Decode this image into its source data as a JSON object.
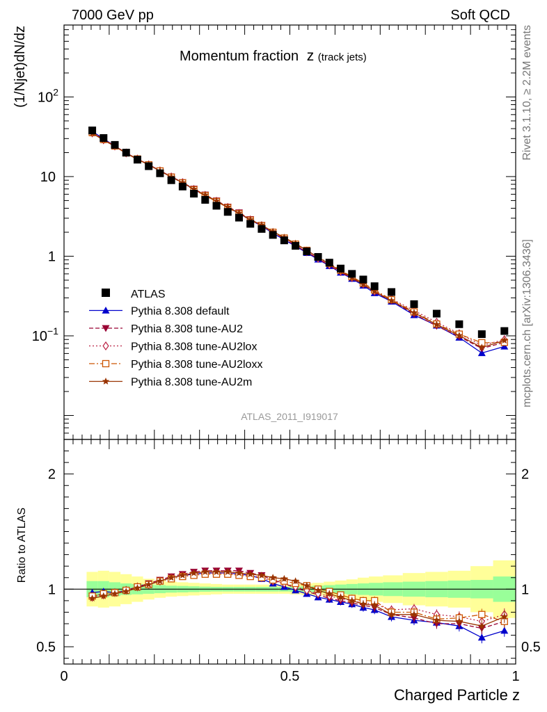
{
  "header": {
    "left": "7000 GeV pp",
    "right": "Soft QCD"
  },
  "chart_data": {
    "type": "line",
    "title": "Momentum fraction",
    "title_var": "z",
    "title_sub": "(track jets)",
    "ylabel": "(1/Njet)dN/dz",
    "ratio_ylabel": "Ratio to ATLAS",
    "xlabel": "Charged Particle z",
    "analysis_label": "ATLAS_2011_I919017",
    "side_text_top": "Rivet 3.1.10, ≥ 2.2M events",
    "side_text_bottom": "mcplots.cern.ch [arXiv:1306.3436]",
    "xlim": [
      0,
      1
    ],
    "ylim_log": [
      0.005,
      800
    ],
    "ratio_ylim": [
      0.35,
      2.3
    ],
    "y_scale": "log",
    "x_ticks": [
      "0",
      "0.5",
      "1"
    ],
    "y_ticks": [
      {
        "value": 0.1,
        "base": "10",
        "exp": "−1"
      },
      {
        "value": 1,
        "label": "1"
      },
      {
        "value": 10,
        "label": "10"
      },
      {
        "value": 100,
        "base": "10",
        "exp": "2"
      }
    ],
    "ratio_ticks": [
      "0.5",
      "1",
      "2"
    ],
    "legend_position": "lower-left",
    "x": [
      0.0625,
      0.0875,
      0.1125,
      0.1375,
      0.1625,
      0.1875,
      0.2125,
      0.2375,
      0.2625,
      0.2875,
      0.3125,
      0.3375,
      0.3625,
      0.3875,
      0.4125,
      0.4375,
      0.4625,
      0.4875,
      0.5125,
      0.5375,
      0.5625,
      0.5875,
      0.6125,
      0.6375,
      0.6625,
      0.6875,
      0.725,
      0.775,
      0.825,
      0.875,
      0.925,
      0.975
    ],
    "data": {
      "name": "ATLAS",
      "values": [
        38,
        30.5,
        25,
        20,
        16.3,
        13.5,
        11,
        9,
        7.5,
        6.1,
        5.1,
        4.3,
        3.6,
        3.05,
        2.55,
        2.2,
        1.85,
        1.58,
        1.35,
        1.15,
        0.98,
        0.83,
        0.7,
        0.6,
        0.51,
        0.42,
        0.355,
        0.25,
        0.19,
        0.14,
        0.105,
        0.115
      ]
    },
    "series": [
      {
        "name": "Pythia 8.308 default",
        "color": "#0000cc",
        "marker": "triangle-up",
        "dash": "solid",
        "ratio": [
          0.97,
          0.98,
          0.97,
          0.99,
          1.02,
          1.04,
          1.07,
          1.1,
          1.12,
          1.13,
          1.14,
          1.14,
          1.14,
          1.13,
          1.12,
          1.09,
          1.05,
          1.02,
          0.99,
          0.96,
          0.93,
          0.91,
          0.89,
          0.87,
          0.84,
          0.82,
          0.76,
          0.73,
          0.71,
          0.68,
          0.58,
          0.64
        ]
      },
      {
        "name": "Pythia 8.308 tune-AU2",
        "color": "#990033",
        "marker": "triangle-down",
        "dash": "dashed",
        "ratio": [
          0.94,
          0.96,
          0.97,
          0.99,
          1.02,
          1.05,
          1.08,
          1.11,
          1.13,
          1.15,
          1.16,
          1.16,
          1.16,
          1.16,
          1.14,
          1.12,
          1.08,
          1.05,
          1.01,
          0.98,
          0.95,
          0.92,
          0.9,
          0.88,
          0.86,
          0.84,
          0.78,
          0.75,
          0.7,
          0.7,
          0.66,
          0.72
        ]
      },
      {
        "name": "Pythia 8.308 tune-AU2lox",
        "color": "#bb2244",
        "marker": "diamond-open",
        "dash": "dotted",
        "ratio": [
          0.93,
          0.95,
          0.97,
          0.99,
          1.02,
          1.04,
          1.07,
          1.1,
          1.12,
          1.13,
          1.14,
          1.14,
          1.14,
          1.13,
          1.12,
          1.1,
          1.07,
          1.05,
          1.02,
          0.99,
          0.96,
          0.94,
          0.92,
          0.9,
          0.88,
          0.87,
          0.82,
          0.83,
          0.78,
          0.76,
          0.72,
          0.78
        ]
      },
      {
        "name": "Pythia 8.308 tune-AU2loxx",
        "color": "#cc5500",
        "marker": "square-open",
        "dash": "dashdot",
        "ratio": [
          0.94,
          0.96,
          0.97,
          0.99,
          1.02,
          1.04,
          1.07,
          1.09,
          1.11,
          1.12,
          1.13,
          1.13,
          1.13,
          1.12,
          1.11,
          1.1,
          1.08,
          1.07,
          1.05,
          1.03,
          1.0,
          0.98,
          0.95,
          0.92,
          0.9,
          0.9,
          0.8,
          0.8,
          0.74,
          0.75,
          0.78,
          0.72
        ]
      },
      {
        "name": "Pythia 8.308 tune-AU2m",
        "color": "#993300",
        "marker": "star",
        "dash": "solid",
        "ratio": [
          0.92,
          0.94,
          0.96,
          0.98,
          1.01,
          1.04,
          1.07,
          1.1,
          1.12,
          1.14,
          1.15,
          1.15,
          1.15,
          1.14,
          1.13,
          1.12,
          1.1,
          1.09,
          1.07,
          1.03,
          0.99,
          0.96,
          0.93,
          0.9,
          0.87,
          0.86,
          0.78,
          0.78,
          0.73,
          0.72,
          0.68,
          0.76
        ]
      }
    ],
    "band_inner_rel": [
      0.07,
      0.07,
      0.06,
      0.05,
      0.045,
      0.04,
      0.035,
      0.03,
      0.028,
      0.025,
      0.022,
      0.02,
      0.02,
      0.02,
      0.02,
      0.02,
      0.02,
      0.02,
      0.022,
      0.025,
      0.03,
      0.035,
      0.04,
      0.045,
      0.05,
      0.055,
      0.06,
      0.065,
      0.07,
      0.075,
      0.08,
      0.11
    ],
    "band_outer_rel": [
      0.15,
      0.16,
      0.15,
      0.13,
      0.11,
      0.09,
      0.075,
      0.065,
      0.06,
      0.055,
      0.05,
      0.045,
      0.04,
      0.04,
      0.04,
      0.04,
      0.04,
      0.04,
      0.045,
      0.05,
      0.055,
      0.065,
      0.075,
      0.085,
      0.1,
      0.11,
      0.12,
      0.14,
      0.15,
      0.16,
      0.2,
      0.25
    ]
  }
}
